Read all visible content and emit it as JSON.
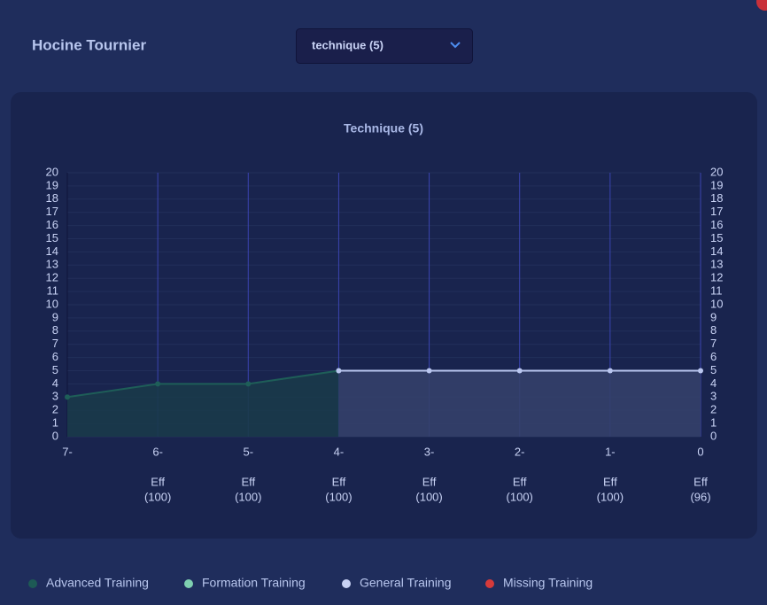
{
  "header": {
    "title": "Hocine Tournier",
    "dropdown": "technique (5)"
  },
  "chart_data": {
    "type": "line",
    "title": "Technique (5)",
    "categories": [
      "7-",
      "6-",
      "5-",
      "4-",
      "3-",
      "2-",
      "1-",
      "0"
    ],
    "sublabels": [
      null,
      [
        "Eff",
        "(100)"
      ],
      [
        "Eff",
        "(100)"
      ],
      [
        "Eff",
        "(100)"
      ],
      [
        "Eff",
        "(100)"
      ],
      [
        "Eff",
        "(100)"
      ],
      [
        "Eff",
        "(100)"
      ],
      [
        "Eff",
        "(96)"
      ]
    ],
    "series": [
      {
        "name": "Advanced Training",
        "color": "#1d5a55",
        "values": [
          3,
          4,
          4,
          5,
          null,
          null,
          null,
          null
        ]
      },
      {
        "name": "Formation Training",
        "color": "#7ecfb0",
        "values": [
          null,
          null,
          null,
          null,
          null,
          null,
          null,
          null
        ]
      },
      {
        "name": "General Training",
        "color": "#c9d3f5",
        "values": [
          null,
          null,
          null,
          5,
          5,
          5,
          5,
          5
        ]
      },
      {
        "name": "Missing Training",
        "color": "#d63a3a",
        "values": [
          null,
          null,
          null,
          null,
          null,
          null,
          null,
          null
        ]
      }
    ],
    "ylim": [
      0,
      20
    ],
    "yticks": [
      0,
      1,
      2,
      3,
      4,
      5,
      6,
      7,
      8,
      9,
      10,
      11,
      12,
      13,
      14,
      15,
      16,
      17,
      18,
      19,
      20
    ],
    "y2lim": [
      0,
      20
    ],
    "y2ticks": [
      0,
      1,
      2,
      3,
      4,
      5,
      6,
      7,
      8,
      9,
      10,
      11,
      12,
      13,
      14,
      15,
      16,
      17,
      18,
      19,
      20
    ],
    "grid": true
  }
}
